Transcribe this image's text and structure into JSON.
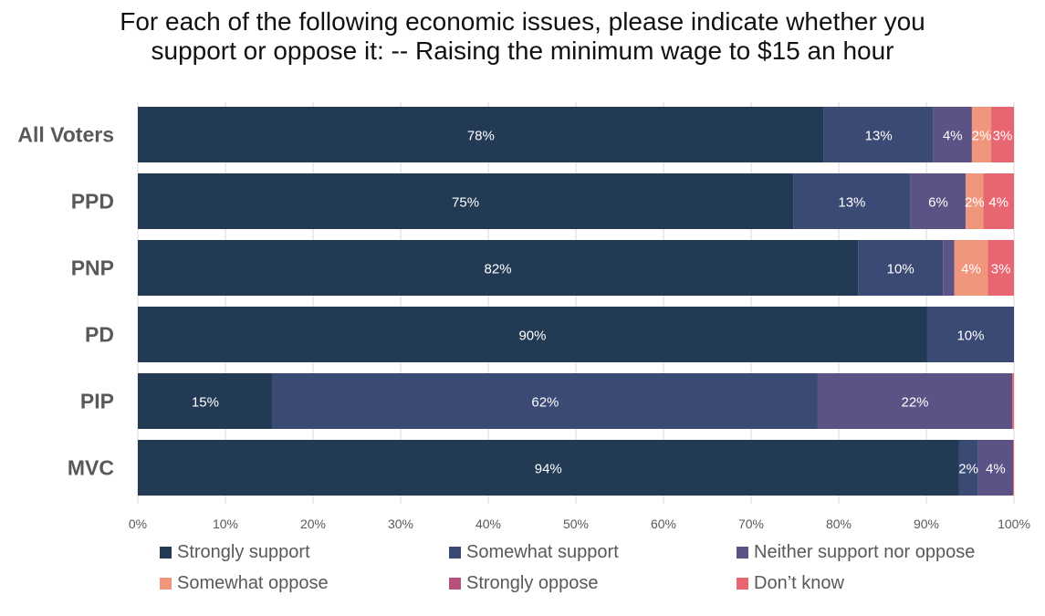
{
  "title_lines": [
    "For each of the following economic issues, please indicate whether you",
    "support or oppose it: -- Raising the minimum wage to $15 an hour"
  ],
  "chart_data": {
    "type": "bar",
    "orientation": "horizontal",
    "stacked": true,
    "title": "For each of the following economic issues, please indicate whether you support or oppose it: -- Raising the minimum wage to $15 an hour",
    "categories": [
      "All Voters",
      "PPD",
      "PNP",
      "PD",
      "PIP",
      "MVC"
    ],
    "xlim": [
      0,
      100
    ],
    "x_ticks": [
      "0%",
      "10%",
      "20%",
      "30%",
      "40%",
      "50%",
      "60%",
      "70%",
      "80%",
      "90%",
      "100%"
    ],
    "grid": true,
    "legend_position": "bottom",
    "series": [
      {
        "name": "Strongly support",
        "color": "#233a55",
        "values": [
          78.3,
          74.8,
          82.2,
          90.1,
          15.4,
          93.7
        ],
        "labels": [
          "78%",
          "75%",
          "82%",
          "90%",
          "15%",
          "94%"
        ]
      },
      {
        "name": "Somewhat support",
        "color": "#3b4a75",
        "values": [
          12.5,
          13.4,
          9.7,
          9.9,
          62.2,
          2.2
        ],
        "labels": [
          "13%",
          "13%",
          "10%",
          "10%",
          "62%",
          "2%"
        ]
      },
      {
        "name": "Neither support nor oppose",
        "color": "#5c5285",
        "values": [
          4.4,
          6.3,
          1.3,
          0,
          22.2,
          4.0
        ],
        "labels": [
          "4%",
          "6%",
          "",
          "",
          "22%",
          "4%"
        ]
      },
      {
        "name": "Somewhat oppose",
        "color": "#f0967c",
        "values": [
          2.2,
          2.0,
          3.8,
          0,
          0,
          0
        ],
        "labels": [
          "2%",
          "2%",
          "4%",
          "",
          "",
          ""
        ]
      },
      {
        "name": "Strongly oppose",
        "color": "#b5527c",
        "values": [
          0,
          0,
          0,
          0,
          0,
          0
        ],
        "labels": [
          "",
          "",
          "",
          "",
          "",
          ""
        ]
      },
      {
        "name": "Don’t know",
        "color": "#e86670",
        "values": [
          2.6,
          3.5,
          3.0,
          0,
          0.2,
          0.1
        ],
        "labels": [
          "3%",
          "4%",
          "3%",
          "",
          "",
          ""
        ]
      }
    ]
  }
}
